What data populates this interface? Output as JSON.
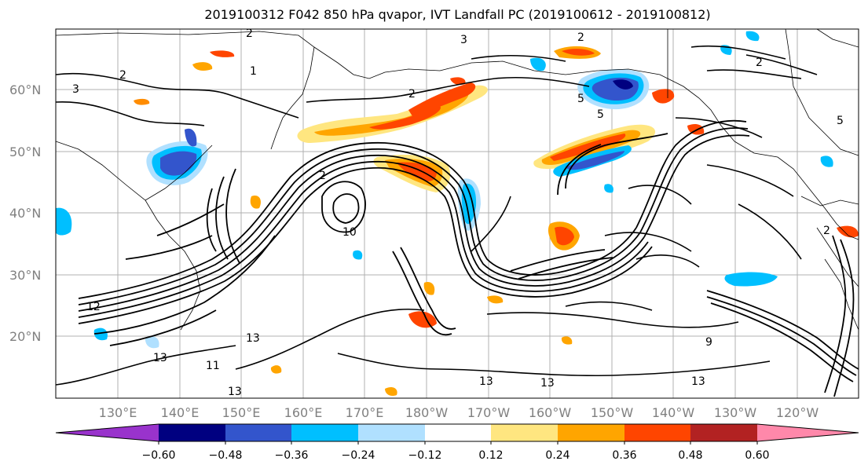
{
  "title": "2019100312 F042 850 hPa qvapor, IVT Landfall PC (2019100612 - 2019100812)",
  "latitude_labels": [
    "60°N",
    "50°N",
    "40°N",
    "30°N",
    "20°N"
  ],
  "longitude_labels": [
    "130°E",
    "140°E",
    "150°E",
    "160°E",
    "170°E",
    "180°W",
    "170°W",
    "160°W",
    "150°W",
    "140°W",
    "130°W",
    "120°W"
  ],
  "contour_labels": [
    "2",
    "3",
    "2",
    "1",
    "2",
    "3",
    "2",
    "5",
    "2",
    "12",
    "13",
    "13",
    "13",
    "11",
    "13",
    "13",
    "13",
    "9",
    "5",
    "5",
    "2",
    "2",
    "10"
  ],
  "colorbar": {
    "ticks": [
      "−0.60",
      "−0.48",
      "−0.36",
      "−0.24",
      "−0.12",
      "0.12",
      "0.24",
      "0.36",
      "0.48",
      "0.60"
    ],
    "colors": [
      "#9933cc",
      "#000080",
      "#3355cc",
      "#00bfff",
      "#b0e0ff",
      "#ffffff",
      "#ffe680",
      "#ffa500",
      "#ff4500",
      "#b22222",
      "#ff88aa"
    ]
  }
}
